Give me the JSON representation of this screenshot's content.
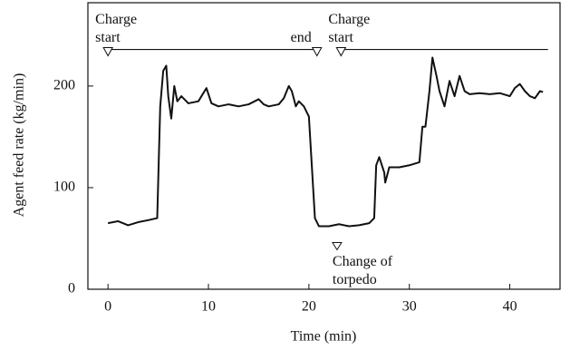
{
  "chart_data": {
    "type": "line",
    "x_label": "Time (min)",
    "y_label": "Agent feed rate (kg/min)",
    "xlim": [
      -2,
      45
    ],
    "ylim": [
      0,
      282
    ],
    "xticks": [
      0,
      10,
      20,
      30,
      40
    ],
    "yticks": [
      0,
      100,
      200
    ],
    "x": [
      0,
      1,
      2,
      3,
      4,
      4.9,
      5.2,
      5.5,
      5.8,
      6.0,
      6.3,
      6.6,
      6.9,
      7.3,
      8,
      9,
      9.8,
      10.3,
      11,
      12,
      13,
      14,
      15,
      15.5,
      16,
      17,
      17.5,
      18,
      18.3,
      18.7,
      19,
      19.5,
      20,
      20.3,
      20.6,
      21,
      22,
      23,
      24,
      25,
      26,
      26.5,
      26.7,
      27,
      27.5,
      27.6,
      28,
      29,
      30,
      31,
      31.3,
      31.6,
      32,
      32.3,
      32.7,
      33,
      33.5,
      34,
      34.5,
      35,
      35.5,
      36,
      37,
      38,
      39,
      40,
      40.5,
      41,
      41.5,
      42,
      42.5,
      43,
      43.3
    ],
    "series": [
      {
        "color": "#111111",
        "values": [
          65,
          67,
          63,
          66,
          68,
          70,
          180,
          215,
          220,
          190,
          168,
          200,
          185,
          190,
          183,
          185,
          198,
          183,
          180,
          182,
          180,
          182,
          187,
          182,
          180,
          182,
          188,
          200,
          195,
          180,
          185,
          180,
          170,
          120,
          70,
          62,
          62,
          64,
          62,
          63,
          65,
          70,
          122,
          130,
          115,
          105,
          120,
          120,
          122,
          125,
          160,
          160,
          195,
          228,
          210,
          195,
          180,
          205,
          190,
          210,
          195,
          192,
          193,
          192,
          193,
          190,
          198,
          202,
          195,
          190,
          188,
          195,
          194
        ]
      }
    ],
    "charge_lines": [
      {
        "x": [
          0,
          20.8
        ],
        "y": 236
      },
      {
        "x": [
          23.2,
          43.8
        ],
        "y": 236
      }
    ],
    "annotations": [
      {
        "lines": [
          "Charge",
          "start"
        ],
        "x": 0,
        "y": 236,
        "pos": "above-left"
      },
      {
        "lines": [
          "end"
        ],
        "x": 20.8,
        "y": 236,
        "pos": "above-right"
      },
      {
        "lines": [
          "Charge",
          "start"
        ],
        "x": 23.2,
        "y": 236,
        "pos": "above-left"
      },
      {
        "lines": [
          "Change of",
          "torpedo"
        ],
        "x": 22.8,
        "y": 46,
        "pos": "below"
      }
    ]
  }
}
